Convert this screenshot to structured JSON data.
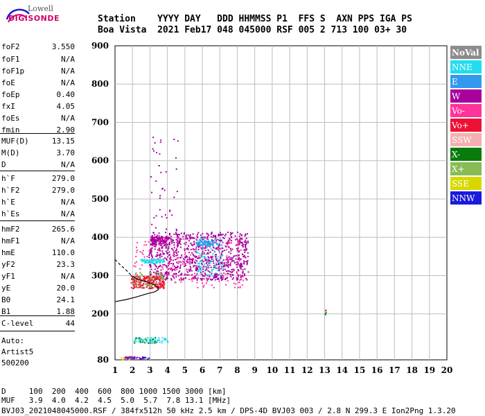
{
  "logo": {
    "top": "Lowell",
    "bottom": "DIGISONDE"
  },
  "header": {
    "line1": "Station    YYYY DAY   DDD HHMMSS P1  FFS S  AXN PPS IGA PS",
    "line2": "Boa Vista  2021 Feb17 048 045000 RSF 005 2 713 100 03+ 30"
  },
  "params": [
    {
      "name": "foF2",
      "value": "3.550"
    },
    {
      "name": "foF1",
      "value": "N/A"
    },
    {
      "name": "foF1p",
      "value": "N/A"
    },
    {
      "name": "foE",
      "value": "N/A"
    },
    {
      "name": "foEp",
      "value": "0.40"
    },
    {
      "name": "fxI",
      "value": "4.05"
    },
    {
      "name": "foEs",
      "value": "N/A"
    },
    {
      "name": "fmin",
      "value": "2.90"
    },
    {
      "name": "MUF(D)",
      "value": "13.15"
    },
    {
      "name": "M(D)",
      "value": "3.70"
    },
    {
      "name": "D",
      "value": "N/A"
    },
    {
      "name": "h`F",
      "value": "279.0"
    },
    {
      "name": "h`F2",
      "value": "279.0"
    },
    {
      "name": "h`E",
      "value": "N/A"
    },
    {
      "name": "h`Es",
      "value": "N/A"
    },
    {
      "name": "hmF2",
      "value": "265.6"
    },
    {
      "name": "hmF1",
      "value": "N/A"
    },
    {
      "name": "hmE",
      "value": "110.0"
    },
    {
      "name": "yF2",
      "value": "23.3"
    },
    {
      "name": "yF1",
      "value": "N/A"
    },
    {
      "name": "yE",
      "value": "20.0"
    },
    {
      "name": "B0",
      "value": "24.1"
    },
    {
      "name": "B1",
      "value": "1.88"
    },
    {
      "name": "C-level",
      "value": "44"
    }
  ],
  "auto": {
    "line1": "Auto:",
    "line2": "Artist5",
    "line3": "500200"
  },
  "footer": {
    "d_row": "D     100  200  400  600  800 1000 1500 3000 [km]",
    "muf_row": "MUF   3.9  4.0  4.2  4.5  5.0  5.7  7.8 13.1 [MHz]",
    "info": "BVJ03_2021048045000.RSF / 384fx512h 50 kHz 2.5 km / DPS-4D BVJ03 003 / 2.8 N 299.3 E Ion2Png 1.3.20"
  },
  "legend": [
    {
      "label": "NoVal",
      "color": "#8c8c8c"
    },
    {
      "label": "NNE",
      "color": "#22ddee"
    },
    {
      "label": "E",
      "color": "#3399ee"
    },
    {
      "label": "W",
      "color": "#a8009f"
    },
    {
      "label": "Vo-",
      "color": "#ff3399"
    },
    {
      "label": "Vo+",
      "color": "#ee1133"
    },
    {
      "label": "SSW",
      "color": "#f4b0b0"
    },
    {
      "label": "X-",
      "color": "#0a7a0a"
    },
    {
      "label": "X+",
      "color": "#88bb55"
    },
    {
      "label": "SSE",
      "color": "#d8d800"
    },
    {
      "label": "NNW",
      "color": "#1a1add"
    }
  ],
  "chart_data": {
    "type": "scatter",
    "xlabel": "",
    "ylabel": "",
    "xlim": [
      1,
      20
    ],
    "ylim": [
      80,
      900
    ],
    "x_ticks": [
      1,
      2,
      3,
      4,
      5,
      6,
      7,
      8,
      9,
      10,
      11,
      12,
      13,
      14,
      15,
      16,
      17,
      18,
      19,
      20
    ],
    "y_ticks": [
      200,
      300,
      400,
      500,
      600,
      700,
      800,
      900
    ],
    "y_bottom_label": "80",
    "grid": true,
    "clusters": [
      {
        "series": "W",
        "fmin": 2.9,
        "fmax": 8.6,
        "hmin": 290,
        "hmax": 415,
        "n": 900
      },
      {
        "series": "W",
        "fmin": 3.0,
        "fmax": 4.1,
        "hmin": 380,
        "hmax": 405,
        "n": 120
      },
      {
        "series": "Vo+",
        "fmin": 1.9,
        "fmax": 3.8,
        "hmin": 268,
        "hmax": 300,
        "n": 220
      },
      {
        "series": "Vo-",
        "fmin": 2.0,
        "fmax": 8.3,
        "hmin": 270,
        "hmax": 400,
        "n": 200
      },
      {
        "series": "NNE",
        "fmin": 2.4,
        "fmax": 3.8,
        "hmin": 334,
        "hmax": 344,
        "n": 80
      },
      {
        "series": "NNE",
        "fmin": 5.6,
        "fmax": 7.2,
        "hmin": 300,
        "hmax": 400,
        "n": 120
      },
      {
        "series": "E",
        "fmin": 5.6,
        "fmax": 6.6,
        "hmin": 380,
        "hmax": 392,
        "n": 60
      },
      {
        "series": "X+",
        "fmin": 2.0,
        "fmax": 3.8,
        "hmin": 270,
        "hmax": 310,
        "n": 60
      },
      {
        "series": "X-",
        "fmin": 2.0,
        "fmax": 3.4,
        "hmin": 125,
        "hmax": 140,
        "n": 30
      },
      {
        "series": "NNE",
        "fmin": 2.0,
        "fmax": 4.0,
        "hmin": 125,
        "hmax": 140,
        "n": 50
      },
      {
        "series": "W",
        "fmin": 3.0,
        "fmax": 4.6,
        "hmin": 410,
        "hmax": 670,
        "n": 40
      },
      {
        "series": "NNW",
        "fmin": 1.5,
        "fmax": 3.0,
        "hmin": 84,
        "hmax": 90,
        "n": 20
      },
      {
        "series": "W",
        "fmin": 1.5,
        "fmax": 3.0,
        "hmin": 84,
        "hmax": 90,
        "n": 20
      },
      {
        "series": "SSE",
        "fmin": 1.0,
        "fmax": 1.8,
        "hmin": 82,
        "hmax": 88,
        "n": 6
      },
      {
        "series": "X-",
        "fmin": 13.0,
        "fmax": 13.05,
        "hmin": 198,
        "hmax": 206,
        "n": 3
      },
      {
        "series": "Vo+",
        "fmin": 13.0,
        "fmax": 13.05,
        "hmin": 206,
        "hmax": 214,
        "n": 2
      }
    ],
    "profile": {
      "series": "profile",
      "points": [
        [
          1.0,
          232
        ],
        [
          1.6,
          237
        ],
        [
          2.2,
          244
        ],
        [
          2.8,
          252
        ],
        [
          3.3,
          258
        ],
        [
          3.5,
          264
        ],
        [
          3.45,
          270
        ],
        [
          3.2,
          277
        ],
        [
          2.8,
          284
        ],
        [
          2.3,
          290
        ],
        [
          1.9,
          300
        ]
      ]
    },
    "profile_extension": {
      "points": [
        [
          1.0,
          342
        ],
        [
          1.3,
          328
        ],
        [
          1.6,
          316
        ],
        [
          1.9,
          302
        ]
      ]
    }
  }
}
